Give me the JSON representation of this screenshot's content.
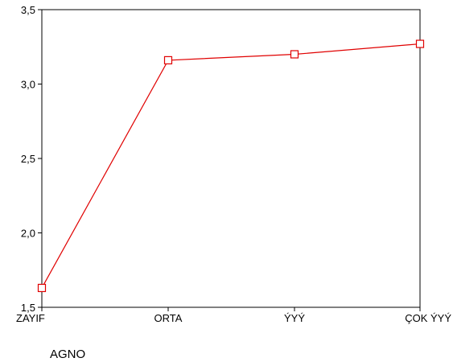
{
  "chart_data": {
    "type": "line",
    "categories": [
      "ZAYIF",
      "ORTA",
      "ÝYÝ",
      "ÇOK ÝYÝ"
    ],
    "series": [
      {
        "values": [
          1.63,
          3.16,
          3.2,
          3.27
        ],
        "color": "#e00000",
        "marker": "square"
      }
    ],
    "xlabel": "AGNO",
    "ylabel": "",
    "ylim": [
      1.5,
      3.5
    ],
    "yticks": [
      {
        "value": 1.5,
        "label": "1,5"
      },
      {
        "value": 2.0,
        "label": "2,0"
      },
      {
        "value": 2.5,
        "label": "2,5"
      },
      {
        "value": 3.0,
        "label": "3,0"
      },
      {
        "value": 3.5,
        "label": "3,5"
      }
    ],
    "grid": false,
    "legend": "none"
  }
}
